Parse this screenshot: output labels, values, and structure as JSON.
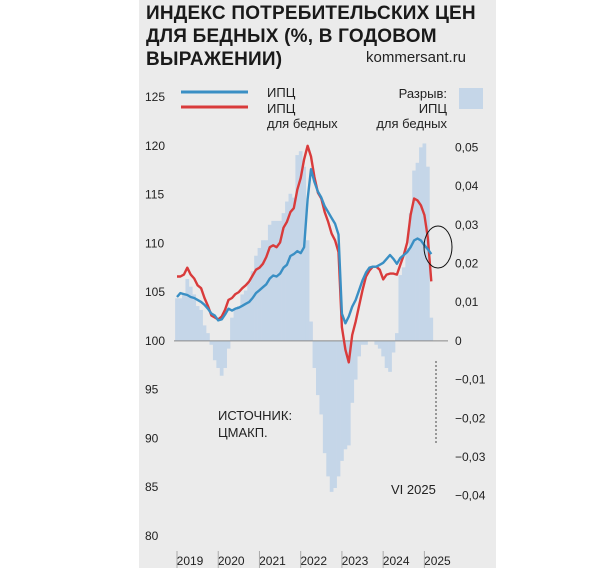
{
  "title": "ИНДЕКС ПОТРЕБИТЕЛЬСКИХ ЦЕН ДЛЯ БЕДНЫХ (%, В ГОДОВОМ ВЫРАЖЕНИИ)",
  "site": "kommersant.ru",
  "legend": {
    "cpi": "ИПЦ",
    "cpi_poor_line1": "ИПЦ",
    "cpi_poor_line2": "для бедных",
    "gap_line1": "Разрыв:",
    "gap_line2": "ИПЦ",
    "gap_line3": "для бедных"
  },
  "source_line1": "ИСТОЧНИК:",
  "source_line2": "ЦМАКП.",
  "annotation": "VI 2025",
  "colors": {
    "cpi": "#3a8fc4",
    "cpi_poor": "#d93b3b",
    "gap": "#c5d6e8",
    "panel": "#ebebeb"
  },
  "chart_data": {
    "type": "line",
    "title": "ИНДЕКС ПОТРЕБИТЕЛЬСКИХ ЦЕН ДЛЯ БЕДНЫХ (%, В ГОДОВОМ ВЫРАЖЕНИИ)",
    "x_labels": [
      "2019",
      "2020",
      "2021",
      "2022",
      "2023",
      "2024",
      "2025"
    ],
    "x_range": [
      2019.0,
      2025.5
    ],
    "y_left": {
      "ticks": [
        80,
        85,
        90,
        95,
        100,
        105,
        110,
        115,
        120,
        125
      ],
      "range": [
        80,
        125
      ]
    },
    "y_right": {
      "ticks": [
        "0,05",
        "0,04",
        "0,03",
        "0,02",
        "0,01",
        "0",
        "−0,01",
        "−0,02",
        "−0,03",
        "−0,04"
      ],
      "range": [
        -0.04,
        0.05
      ]
    },
    "grid": false,
    "legend_position": "top",
    "series": [
      {
        "name": "ИПЦ",
        "axis": "left",
        "values": [
          104.5,
          104.9,
          104.8,
          104.7,
          104.5,
          104.4,
          104.2,
          104.0,
          103.7,
          103.3,
          102.8,
          102.6,
          102.1,
          102.2,
          102.7,
          103.3,
          103.1,
          103.3,
          103.4,
          103.6,
          103.8,
          104.0,
          104.4,
          104.9,
          105.2,
          105.5,
          105.8,
          106.4,
          106.7,
          106.6,
          106.9,
          107.5,
          107.8,
          108.7,
          108.9,
          109.2,
          109.0,
          109.6,
          114.5,
          117.6,
          116.3,
          115.3,
          114.7,
          113.8,
          113.2,
          112.6,
          112.0,
          110.9,
          102.8,
          101.8,
          102.5,
          103.5,
          104.2,
          105.2,
          106.2,
          107.0,
          107.5,
          107.6,
          107.6,
          107.8,
          108.0,
          108.4,
          108.8,
          108.4,
          107.9,
          108.5,
          108.8,
          109.1,
          109.6,
          110.3,
          110.5,
          110.3,
          109.8,
          109.4,
          108.9
        ]
      },
      {
        "name": "ИПЦ для бедных",
        "axis": "left",
        "values": [
          106.6,
          106.6,
          106.8,
          107.5,
          106.8,
          106.4,
          105.7,
          105.4,
          104.4,
          103.6,
          102.6,
          102.4,
          102.2,
          102.5,
          103.2,
          104.2,
          104.4,
          104.8,
          105.0,
          105.4,
          105.7,
          106.1,
          106.7,
          107.3,
          107.5,
          107.9,
          108.6,
          109.6,
          109.8,
          109.6,
          110.1,
          111.6,
          112.2,
          113.2,
          113.6,
          115.5,
          116.7,
          118.6,
          120.0,
          118.9,
          116.8,
          115.2,
          114.6,
          113.2,
          112.2,
          111.0,
          110.3,
          109.1,
          101.4,
          99.1,
          97.8,
          100.6,
          102.0,
          103.6,
          105.2,
          106.6,
          107.2,
          107.6,
          107.6,
          107.3,
          106.3,
          106.8,
          106.9,
          106.9,
          106.8,
          107.8,
          108.8,
          110.1,
          112.9,
          114.6,
          114.4,
          113.9,
          112.9,
          110.6,
          106.1
        ]
      },
      {
        "name": "Разрыв: ИПЦ для бедных",
        "axis": "right",
        "chart_type": "bar",
        "values": [
          0.011,
          0.011,
          0.012,
          0.016,
          0.014,
          0.012,
          0.009,
          0.008,
          0.004,
          0.002,
          -0.001,
          -0.005,
          -0.007,
          -0.009,
          -0.007,
          -0.002,
          0.006,
          0.008,
          0.009,
          0.012,
          0.013,
          0.015,
          0.018,
          0.022,
          0.024,
          0.026,
          0.026,
          0.03,
          0.031,
          0.031,
          0.031,
          0.033,
          0.036,
          0.038,
          0.037,
          0.048,
          0.049,
          0.045,
          0.026,
          0.005,
          -0.007,
          -0.014,
          -0.019,
          -0.029,
          -0.035,
          -0.039,
          -0.038,
          -0.035,
          -0.031,
          -0.028,
          -0.027,
          -0.016,
          -0.01,
          -0.004,
          -0.001,
          -0.001,
          0.0,
          0.0,
          -0.001,
          -0.002,
          -0.004,
          -0.007,
          -0.008,
          -0.003,
          0.002,
          0.017,
          0.019,
          0.024,
          0.033,
          0.044,
          0.046,
          0.05,
          0.051,
          0.045,
          0.006
        ]
      }
    ]
  }
}
